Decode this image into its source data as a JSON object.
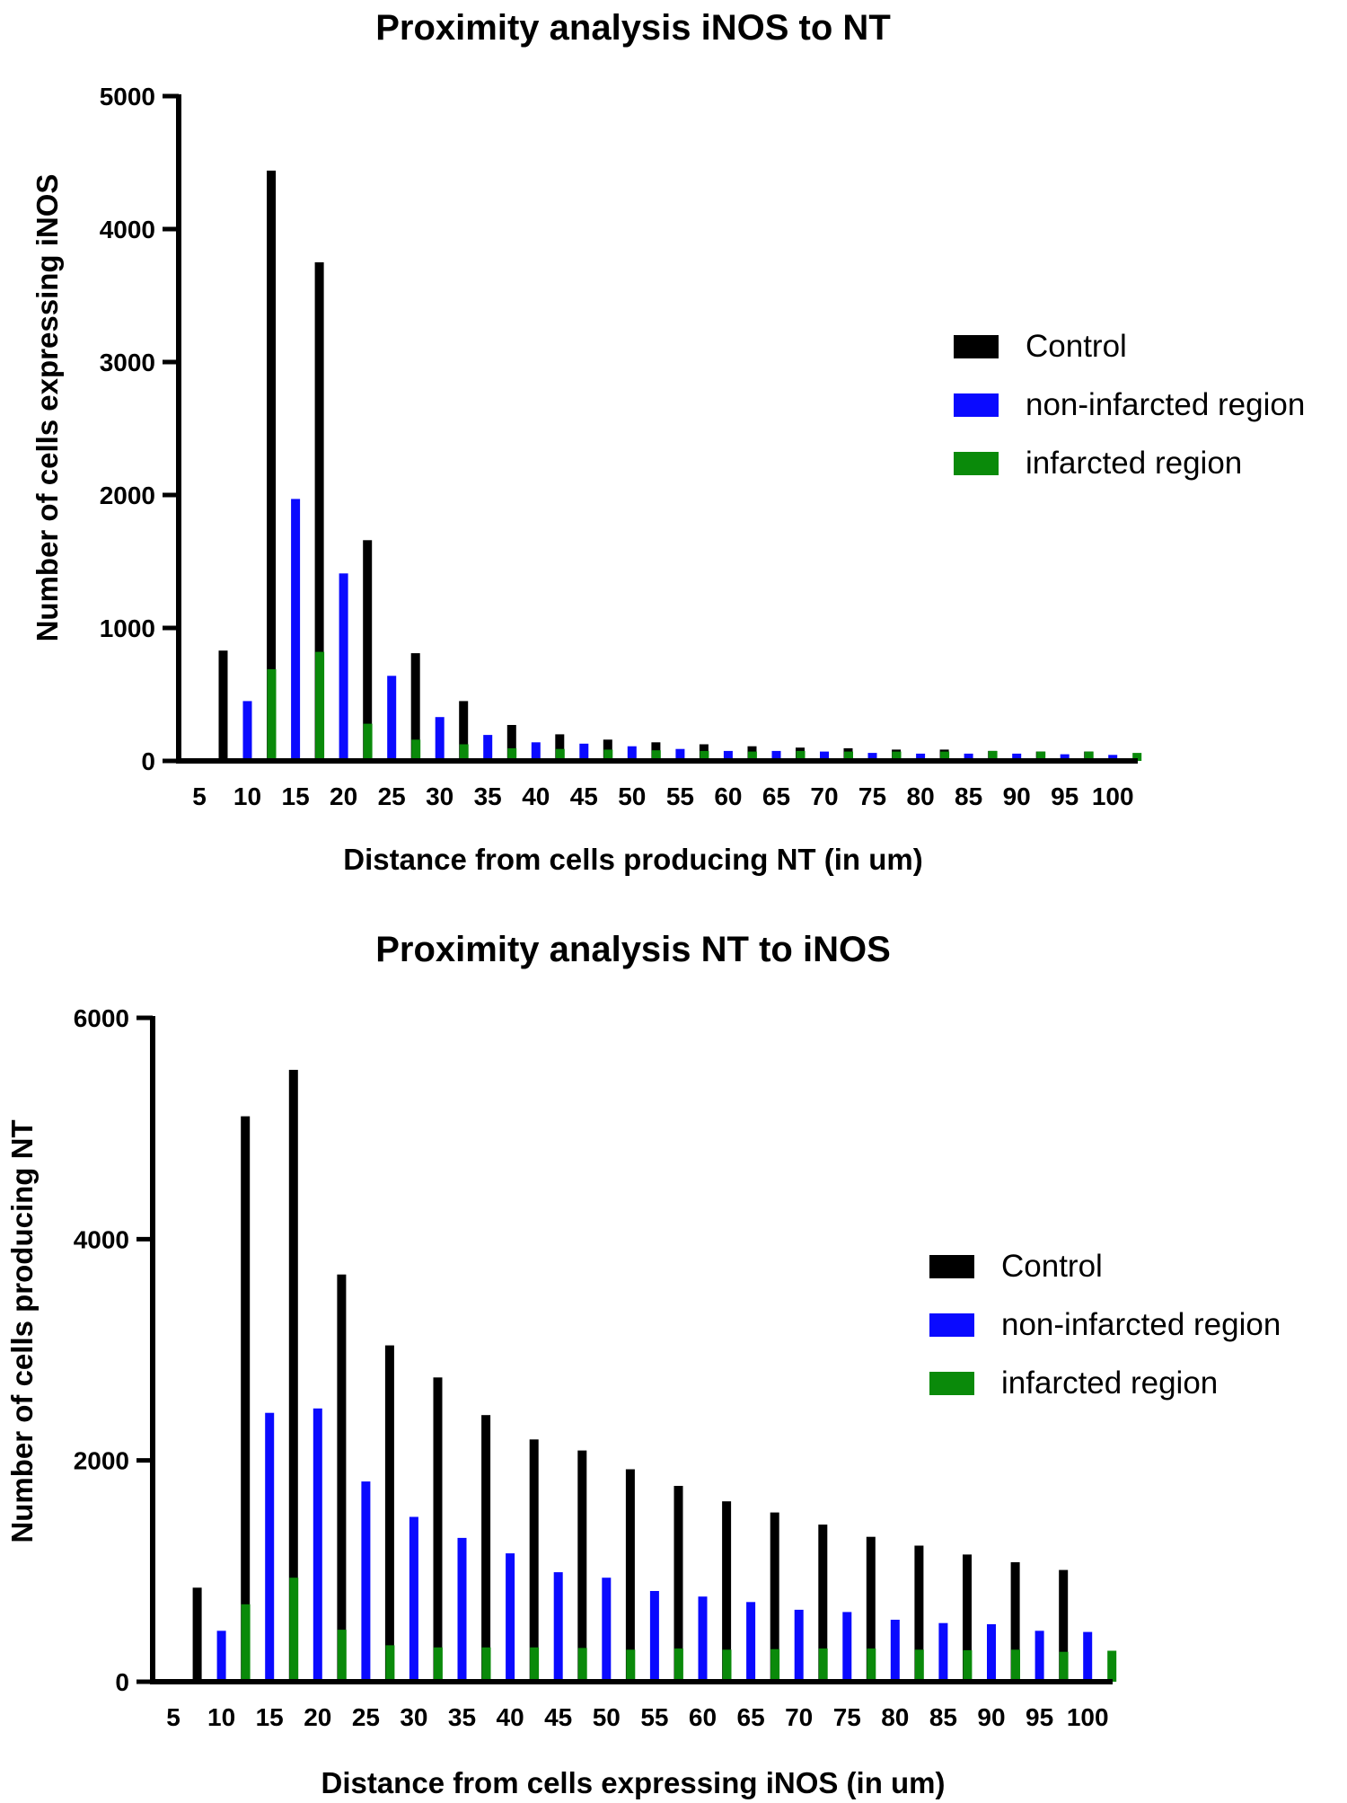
{
  "chart_data": [
    {
      "type": "bar",
      "title": "Proximity analysis iNOS to NT",
      "xlabel": "Distance from cells producing NT (in um)",
      "ylabel": "Number of cells expressing iNOS",
      "ylim": [
        0,
        5000
      ],
      "yticks": [
        0,
        1000,
        2000,
        3000,
        4000,
        5000
      ],
      "categories": [
        "5",
        "10",
        "15",
        "20",
        "25",
        "30",
        "35",
        "40",
        "45",
        "50",
        "55",
        "60",
        "65",
        "70",
        "75",
        "80",
        "85",
        "90",
        "95",
        "100"
      ],
      "legend_position": "right",
      "series": [
        {
          "name": "Control",
          "color": "#000000",
          "values": [
            0,
            830,
            4440,
            3750,
            1660,
            810,
            450,
            270,
            200,
            160,
            140,
            125,
            110,
            100,
            95,
            85,
            85,
            75,
            70,
            70
          ]
        },
        {
          "name": "non-infarcted region",
          "color": "#0a0aff",
          "values": [
            0,
            450,
            1970,
            1410,
            640,
            330,
            195,
            140,
            130,
            110,
            90,
            75,
            75,
            70,
            60,
            55,
            55,
            55,
            50,
            45
          ]
        },
        {
          "name": "infarcted region",
          "color": "#0a8a0a",
          "values": [
            0,
            690,
            820,
            280,
            160,
            125,
            95,
            90,
            85,
            80,
            75,
            70,
            75,
            70,
            70,
            70,
            75,
            70,
            70,
            60
          ]
        }
      ]
    },
    {
      "type": "bar",
      "title": "Proximity analysis NT to iNOS",
      "xlabel": "Distance from cells expressing iNOS (in um)",
      "ylabel": "Number of cells producing NT",
      "ylim": [
        0,
        6000
      ],
      "yticks": [
        0,
        2000,
        4000,
        6000
      ],
      "categories": [
        "5",
        "10",
        "15",
        "20",
        "25",
        "30",
        "35",
        "40",
        "45",
        "50",
        "55",
        "60",
        "65",
        "70",
        "75",
        "80",
        "85",
        "90",
        "95",
        "100"
      ],
      "legend_position": "right",
      "series": [
        {
          "name": "Control",
          "color": "#000000",
          "values": [
            0,
            850,
            5110,
            5530,
            3680,
            3040,
            2750,
            2410,
            2190,
            2090,
            1920,
            1770,
            1630,
            1530,
            1420,
            1310,
            1230,
            1150,
            1080,
            1010
          ]
        },
        {
          "name": "non-infarcted region",
          "color": "#0a0aff",
          "values": [
            0,
            460,
            2430,
            2470,
            1810,
            1490,
            1300,
            1160,
            990,
            940,
            820,
            770,
            720,
            650,
            630,
            560,
            530,
            520,
            460,
            450
          ]
        },
        {
          "name": "infarcted region",
          "color": "#0a8a0a",
          "values": [
            0,
            700,
            940,
            470,
            330,
            310,
            310,
            310,
            305,
            290,
            300,
            290,
            295,
            300,
            300,
            290,
            285,
            290,
            270,
            280
          ]
        }
      ]
    }
  ]
}
